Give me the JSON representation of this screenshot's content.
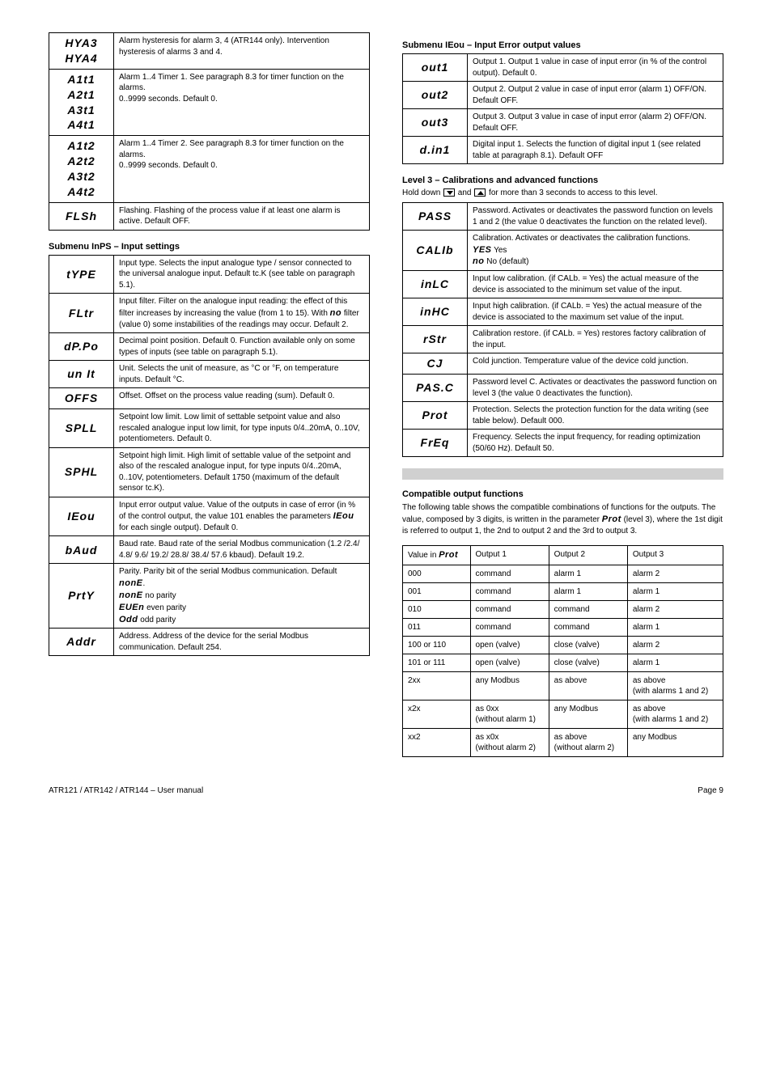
{
  "left_table_a": [
    {
      "labels": [
        "HYA3",
        "HYA4"
      ],
      "desc": "Alarm hysteresis for alarm 3, 4 (ATR144 only). Intervention hysteresis of alarms 3 and 4."
    },
    {
      "labels": [
        "A1t1",
        "A2t1",
        "A3t1",
        "A4t1"
      ],
      "desc": "Alarm 1..4 Timer 1. See paragraph 8.3 for timer function on the alarms.\n0..9999 seconds. Default 0."
    },
    {
      "labels": [
        "A1t2",
        "A2t2",
        "A3t2",
        "A4t2"
      ],
      "desc": "Alarm 1..4 Timer 2. See paragraph 8.3 for timer function on the alarms.\n0..9999 seconds. Default 0."
    },
    {
      "labels": [
        "FLSh"
      ],
      "desc": "Flashing. Flashing of the process value if at least one alarm is active. Default OFF."
    }
  ],
  "left_section_title": "Submenu InPS – Input settings",
  "left_table_b": [
    {
      "labels": [
        "tYPE"
      ],
      "desc": "Input type. Selects the input analogue type / sensor connected to the universal analogue input. Default tc.K (see table on paragraph 5.1)."
    },
    {
      "labels": [
        "FLtr"
      ],
      "desc": "Input filter. Filter on the analogue input reading: the effect of this filter increases by increasing the value (from 1 to 15). With no filter (value 0) some instabilities of the readings may occur. Default 2."
    },
    {
      "labels": [
        "dP.Po"
      ],
      "desc": "Decimal point position. Default 0. Function available only on some types of inputs (see table on paragraph 5.1)."
    },
    {
      "labels": [
        "un It"
      ],
      "desc": "Unit. Selects the unit of measure, as °C or °F, on temperature inputs. Default °C."
    },
    {
      "labels": [
        "OFFS"
      ],
      "desc": "Offset. Offset on the process value reading (sum). Default 0."
    },
    {
      "labels": [
        "SPLL"
      ],
      "desc": "Setpoint low limit. Low limit of settable setpoint value and also rescaled analogue input low limit, for type inputs 0/4..20mA, 0..10V, potentiometers. Default 0."
    },
    {
      "labels": [
        "SPHL"
      ],
      "desc": "Setpoint high limit. High limit of settable value of the setpoint and also of the rescaled analogue input, for type inputs 0/4..20mA, 0..10V, potentiometers. Default 1750 (maximum of the default sensor tc.K)."
    },
    {
      "labels": [
        "IEou"
      ],
      "desc": "Input error output value. Value of the outputs in case of error (in % of the control output, the value 101 enables the parameters IEou for each single output). Default 0."
    },
    {
      "labels": [
        "bAud"
      ],
      "desc": "Baud rate. Baud rate of the serial Modbus communication (1.2 /2.4/ 4.8/ 9.6/ 19.2/ 28.8/ 38.4/ 57.6 kbaud). Default 19.2."
    },
    {
      "labels": [
        "PrtY"
      ],
      "desc": "Parity. Parity bit of the serial Modbus communication. Default nonE.\nnonE no parity\nEUEn even parity\nOdd odd parity"
    },
    {
      "labels": [
        "Addr"
      ],
      "desc": "Address. Address of the device for the serial Modbus communication. Default 254."
    }
  ],
  "right_section_a_title": "Submenu IEou – Input Error output values",
  "right_table_a": [
    {
      "labels": [
        "out1"
      ],
      "desc": "Output 1. Output 1 value in case of input error (in % of the control output). Default 0."
    },
    {
      "labels": [
        "out2"
      ],
      "desc": "Output 2. Output 2 value in case of input error (alarm 1) OFF/ON. Default OFF."
    },
    {
      "labels": [
        "out3"
      ],
      "desc": "Output 3. Output 3 value in case of input error (alarm 2) OFF/ON. Default OFF."
    },
    {
      "labels": [
        "d.in1"
      ],
      "desc": "Digital input 1. Selects the function of digital input 1 (see related table at paragraph 8.1). Default OFF"
    }
  ],
  "right_section_b_title": "Level 3 – Calibrations and advanced functions",
  "right_section_b_intro": "Hold down    and    for more than 3 seconds to access to this level.",
  "right_table_b": [
    {
      "labels": [
        "PASS"
      ],
      "desc": "Password. Activates or deactivates the password function on levels 1 and 2 (the value 0 deactivates the function on the related level)."
    },
    {
      "labels": [
        "CALIb"
      ],
      "desc": "Calibration. Activates or deactivates the calibration functions.\nYES Yes\nno No (default)"
    },
    {
      "labels": [
        "inLC"
      ],
      "desc": "Input low calibration. (if CALb. = Yes) the actual measure of the device is associated to the minimum set value of the input."
    },
    {
      "labels": [
        "inHC"
      ],
      "desc": "Input high calibration. (if CALb. = Yes) the actual measure of the device is associated to the maximum set value of the input."
    },
    {
      "labels": [
        "rStr"
      ],
      "desc": "Calibration restore. (if CALb. = Yes) restores factory calibration of the input."
    },
    {
      "labels": [
        "CJ"
      ],
      "desc": "Cold junction. Temperature value of the device cold junction."
    },
    {
      "labels": [
        "PAS.C"
      ],
      "desc": "Password level C. Activates or deactivates the password function on level 3 (the value 0 deactivates the function)."
    },
    {
      "labels": [
        "Prot"
      ],
      "desc": "Protection. Selects the protection function for the data writing (see table below). Default 000."
    },
    {
      "labels": [
        "FrEq"
      ],
      "desc": "Frequency. Selects the input frequency, for reading optimization (50/60 Hz). Default 50."
    }
  ],
  "compat_title": "Compatible output functions",
  "compat_intro": "The following table shows the compatible combinations of functions for the outputs. The value, composed by 3 digits, is written in the parameter Prot (level 3), where the 1st digit is referred to output 1, the 2nd to output 2 and the 3rd to output 3.",
  "compat_headers": [
    "Value in Prot",
    "Output 1",
    "Output 2",
    "Output 3"
  ],
  "compat_rows": [
    [
      "000",
      "command",
      "alarm 1",
      "alarm 2"
    ],
    [
      "001",
      "command",
      "alarm 1",
      "alarm 1"
    ],
    [
      "010",
      "command",
      "command",
      "alarm 2"
    ],
    [
      "011",
      "command",
      "command",
      "alarm 1"
    ],
    [
      "100 or 110",
      "open (valve)",
      "close (valve)",
      "alarm 2"
    ],
    [
      "101 or 111",
      "open (valve)",
      "close (valve)",
      "alarm 1"
    ],
    [
      "2xx",
      "any Modbus",
      "as above",
      "as above\n(with alarms 1 and 2)"
    ],
    [
      "x2x",
      "as 0xx\n(without alarm 1)",
      "any Modbus",
      "as above\n(with alarms 1 and 2)"
    ],
    [
      "xx2",
      "as x0x\n(without alarm 2)",
      "as above\n(without alarm 2)",
      "any Modbus"
    ]
  ],
  "footer_left": "ATR121 / ATR142 / ATR144 – User manual",
  "footer_right": "Page 9"
}
